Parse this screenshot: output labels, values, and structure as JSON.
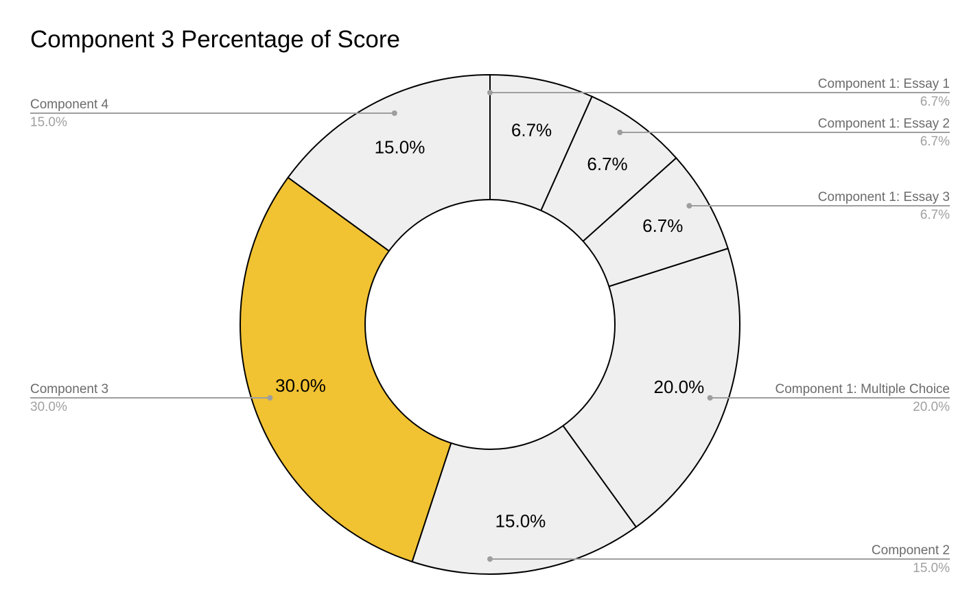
{
  "chart_data": {
    "type": "pie",
    "donut": true,
    "title": "Component 3 Percentage of Score",
    "start_angle_deg": 0,
    "slices": [
      {
        "label": "Component 1: Essay 1",
        "value": 6.7,
        "display": "6.7%",
        "color": "#efefef",
        "legend_pct": "6.7%",
        "side": "right"
      },
      {
        "label": "Component 1: Essay 2",
        "value": 6.7,
        "display": "6.7%",
        "color": "#efefef",
        "legend_pct": "6.7%",
        "side": "right"
      },
      {
        "label": "Component 1: Essay 3",
        "value": 6.7,
        "display": "6.7%",
        "color": "#efefef",
        "legend_pct": "6.7%",
        "side": "right"
      },
      {
        "label": "Component 1: Multiple Choice",
        "value": 20.0,
        "display": "20.0%",
        "color": "#efefef",
        "legend_pct": "20.0%",
        "side": "right"
      },
      {
        "label": "Component 2",
        "value": 15.0,
        "display": "15.0%",
        "color": "#efefef",
        "legend_pct": "15.0%",
        "side": "right"
      },
      {
        "label": "Component 3",
        "value": 30.0,
        "display": "30.0%",
        "color": "#f1c232",
        "legend_pct": "30.0%",
        "side": "left"
      },
      {
        "label": "Component 4",
        "value": 15.0,
        "display": "15.0%",
        "color": "#efefef",
        "legend_pct": "15.0%",
        "side": "left"
      }
    ],
    "colors": {
      "highlight": "#f1c232",
      "default": "#efefef",
      "stroke": "#000000",
      "leader": "#9e9e9e"
    },
    "legend": "leader-lines"
  }
}
